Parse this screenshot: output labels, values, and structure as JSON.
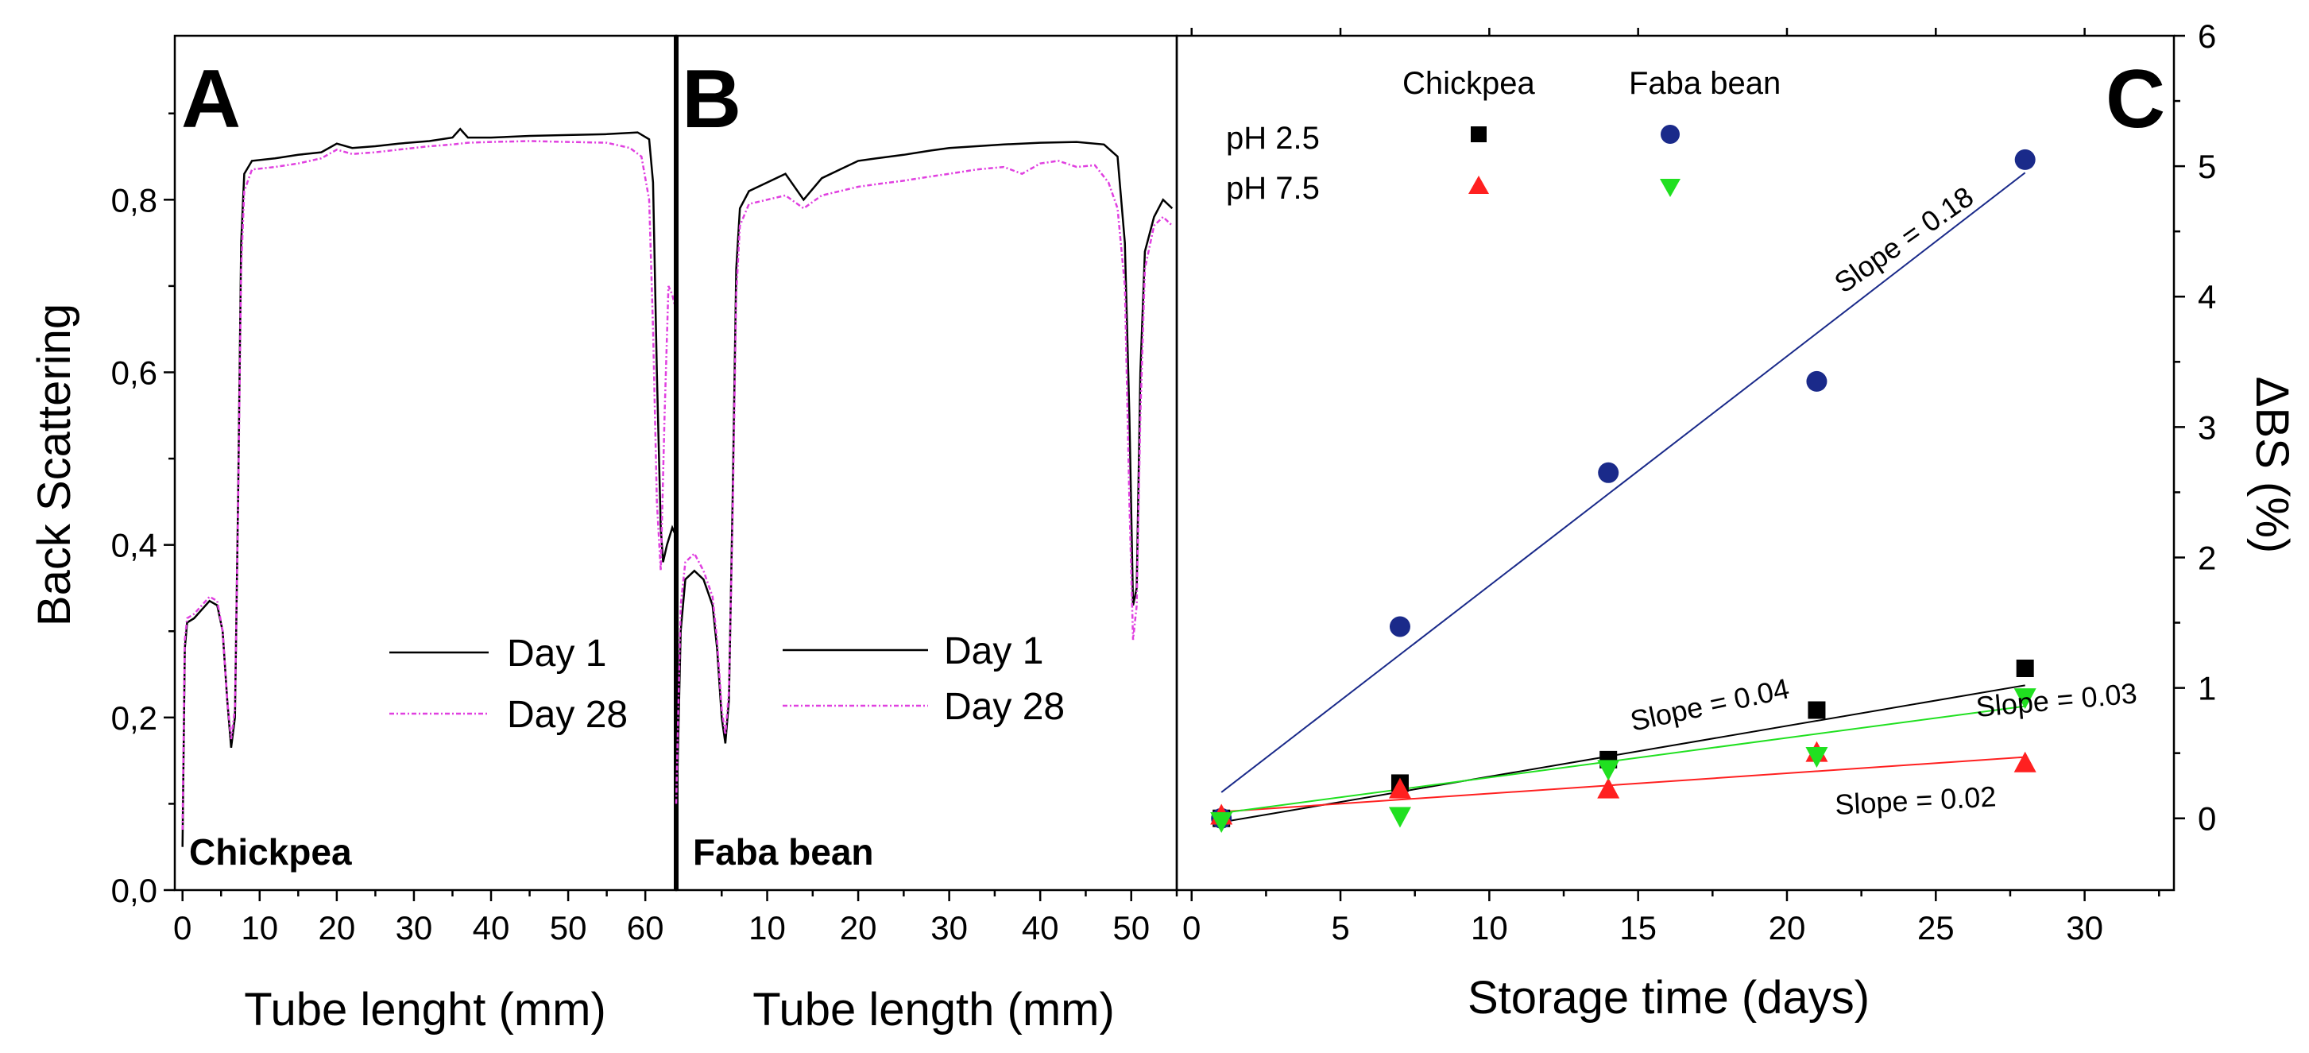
{
  "chart_data": [
    {
      "type": "line",
      "panel": "A",
      "label": "Chickpea",
      "xlabel": "Tube lenght (mm)",
      "ylabel": "Back Scattering",
      "xlim": [
        -1,
        64
      ],
      "ylim": [
        0,
        0.99
      ],
      "xticks": [
        0,
        10,
        20,
        30,
        40,
        50,
        60
      ],
      "xtick_labels": [
        "0",
        "10",
        "20",
        "30",
        "40",
        "50",
        "60"
      ],
      "yticks": [
        0,
        0.2,
        0.4,
        0.6,
        0.8
      ],
      "ytick_labels": [
        "0,0",
        "0,2",
        "0,4",
        "0,6",
        "0,8"
      ],
      "legend": [
        "Day 1",
        "Day 28"
      ],
      "series": [
        {
          "name": "Day 1",
          "color": "#000000",
          "points": [
            [
              0,
              0.05
            ],
            [
              0.3,
              0.28
            ],
            [
              0.6,
              0.31
            ],
            [
              1.5,
              0.315
            ],
            [
              2.5,
              0.325
            ],
            [
              3.5,
              0.335
            ],
            [
              4.5,
              0.33
            ],
            [
              5.2,
              0.3
            ],
            [
              5.8,
              0.22
            ],
            [
              6.3,
              0.165
            ],
            [
              6.8,
              0.2
            ],
            [
              7.2,
              0.45
            ],
            [
              7.6,
              0.75
            ],
            [
              8,
              0.83
            ],
            [
              9,
              0.845
            ],
            [
              12,
              0.848
            ],
            [
              15,
              0.852
            ],
            [
              18,
              0.855
            ],
            [
              20,
              0.865
            ],
            [
              22,
              0.86
            ],
            [
              25,
              0.862
            ],
            [
              28,
              0.865
            ],
            [
              32,
              0.868
            ],
            [
              35,
              0.872
            ],
            [
              36,
              0.882
            ],
            [
              37,
              0.872
            ],
            [
              40,
              0.872
            ],
            [
              45,
              0.874
            ],
            [
              50,
              0.875
            ],
            [
              55,
              0.876
            ],
            [
              59,
              0.878
            ],
            [
              60.5,
              0.87
            ],
            [
              61,
              0.82
            ],
            [
              61.5,
              0.6
            ],
            [
              62,
              0.42
            ],
            [
              62.3,
              0.38
            ],
            [
              62.8,
              0.4
            ],
            [
              63.5,
              0.42
            ],
            [
              64,
              0.41
            ]
          ]
        },
        {
          "name": "Day 28",
          "color": "#e040e0",
          "points": [
            [
              0,
              0.07
            ],
            [
              0.3,
              0.29
            ],
            [
              0.6,
              0.315
            ],
            [
              1.5,
              0.32
            ],
            [
              2.5,
              0.33
            ],
            [
              3.5,
              0.34
            ],
            [
              4.5,
              0.335
            ],
            [
              5.2,
              0.3
            ],
            [
              5.8,
              0.22
            ],
            [
              6.3,
              0.175
            ],
            [
              6.8,
              0.21
            ],
            [
              7.2,
              0.44
            ],
            [
              7.6,
              0.72
            ],
            [
              8,
              0.81
            ],
            [
              9,
              0.835
            ],
            [
              12,
              0.838
            ],
            [
              15,
              0.842
            ],
            [
              18,
              0.848
            ],
            [
              20,
              0.858
            ],
            [
              22,
              0.853
            ],
            [
              25,
              0.855
            ],
            [
              28,
              0.858
            ],
            [
              32,
              0.862
            ],
            [
              35,
              0.864
            ],
            [
              37,
              0.866
            ],
            [
              40,
              0.867
            ],
            [
              45,
              0.868
            ],
            [
              50,
              0.867
            ],
            [
              55,
              0.866
            ],
            [
              58,
              0.86
            ],
            [
              59.5,
              0.85
            ],
            [
              60.5,
              0.8
            ],
            [
              61,
              0.65
            ],
            [
              61.5,
              0.45
            ],
            [
              62,
              0.37
            ],
            [
              62.5,
              0.55
            ],
            [
              63,
              0.7
            ],
            [
              63.5,
              0.69
            ],
            [
              64,
              0.67
            ]
          ]
        }
      ]
    },
    {
      "type": "line",
      "panel": "B",
      "label": "Faba bean",
      "xlabel": "Tube length (mm)",
      "ylabel": "",
      "xlim": [
        0,
        55
      ],
      "ylim": [
        0,
        0.99
      ],
      "xticks": [
        10,
        20,
        30,
        40,
        50
      ],
      "xtick_labels": [
        "10",
        "20",
        "30",
        "40",
        "50"
      ],
      "legend": [
        "Day 1",
        "Day 28"
      ],
      "series": [
        {
          "name": "Day 1",
          "color": "#000000",
          "points": [
            [
              0,
              0.07
            ],
            [
              0.5,
              0.3
            ],
            [
              1,
              0.36
            ],
            [
              2,
              0.37
            ],
            [
              3,
              0.36
            ],
            [
              4,
              0.33
            ],
            [
              4.5,
              0.28
            ],
            [
              5,
              0.2
            ],
            [
              5.4,
              0.17
            ],
            [
              5.8,
              0.22
            ],
            [
              6.2,
              0.45
            ],
            [
              6.6,
              0.72
            ],
            [
              7,
              0.79
            ],
            [
              8,
              0.81
            ],
            [
              10,
              0.82
            ],
            [
              12,
              0.83
            ],
            [
              14,
              0.8
            ],
            [
              16,
              0.825
            ],
            [
              18,
              0.835
            ],
            [
              20,
              0.845
            ],
            [
              22,
              0.848
            ],
            [
              25,
              0.852
            ],
            [
              28,
              0.857
            ],
            [
              30,
              0.86
            ],
            [
              33,
              0.862
            ],
            [
              36,
              0.864
            ],
            [
              40,
              0.866
            ],
            [
              44,
              0.867
            ],
            [
              47,
              0.864
            ],
            [
              48.5,
              0.85
            ],
            [
              49.3,
              0.75
            ],
            [
              49.8,
              0.55
            ],
            [
              50.2,
              0.33
            ],
            [
              50.6,
              0.35
            ],
            [
              51,
              0.6
            ],
            [
              51.5,
              0.74
            ],
            [
              52.5,
              0.78
            ],
            [
              53.5,
              0.8
            ],
            [
              54.5,
              0.79
            ]
          ]
        },
        {
          "name": "Day 28",
          "color": "#e040e0",
          "points": [
            [
              0,
              0.1
            ],
            [
              0.5,
              0.33
            ],
            [
              1,
              0.38
            ],
            [
              2,
              0.39
            ],
            [
              3,
              0.37
            ],
            [
              4,
              0.34
            ],
            [
              4.5,
              0.29
            ],
            [
              5,
              0.21
            ],
            [
              5.4,
              0.18
            ],
            [
              5.8,
              0.23
            ],
            [
              6.2,
              0.43
            ],
            [
              6.6,
              0.69
            ],
            [
              7,
              0.77
            ],
            [
              8,
              0.795
            ],
            [
              10,
              0.8
            ],
            [
              12,
              0.805
            ],
            [
              14,
              0.79
            ],
            [
              16,
              0.805
            ],
            [
              18,
              0.81
            ],
            [
              20,
              0.815
            ],
            [
              22,
              0.818
            ],
            [
              25,
              0.822
            ],
            [
              28,
              0.827
            ],
            [
              30,
              0.83
            ],
            [
              33,
              0.835
            ],
            [
              36,
              0.838
            ],
            [
              38,
              0.83
            ],
            [
              40,
              0.842
            ],
            [
              42,
              0.845
            ],
            [
              44,
              0.838
            ],
            [
              46,
              0.84
            ],
            [
              47.5,
              0.82
            ],
            [
              48.5,
              0.79
            ],
            [
              49.3,
              0.7
            ],
            [
              49.8,
              0.45
            ],
            [
              50.2,
              0.29
            ],
            [
              50.6,
              0.33
            ],
            [
              51,
              0.55
            ],
            [
              51.5,
              0.72
            ],
            [
              52.5,
              0.77
            ],
            [
              53.5,
              0.78
            ],
            [
              54.5,
              0.77
            ]
          ]
        }
      ]
    },
    {
      "type": "scatter",
      "panel": "C",
      "xlabel": "Storage time (days)",
      "ylabel": "ΔBS (%)",
      "xlim": [
        -0.5,
        33
      ],
      "ylim": [
        -0.55,
        6
      ],
      "xticks": [
        0,
        5,
        10,
        15,
        20,
        25,
        30
      ],
      "xtick_labels": [
        "0",
        "5",
        "10",
        "15",
        "20",
        "25",
        "30"
      ],
      "yticks": [
        0,
        1,
        2,
        3,
        4,
        5,
        6
      ],
      "ytick_labels": [
        "0",
        "1",
        "2",
        "3",
        "4",
        "5",
        "6"
      ],
      "legend_columns": [
        "Chickpea",
        "Faba bean"
      ],
      "legend_rows": [
        "pH 2.5",
        "pH 7.5"
      ],
      "series": [
        {
          "name": "Chickpea pH 2.5",
          "marker": "square",
          "color": "#000000",
          "x": [
            1,
            7,
            14,
            21,
            28
          ],
          "y": [
            0.0,
            0.27,
            0.45,
            0.83,
            1.15
          ],
          "fit": {
            "x": [
              1,
              28
            ],
            "y": [
              -0.03,
              1.02
            ],
            "slope_label": "Slope = 0.04"
          }
        },
        {
          "name": "Faba bean pH 2.5",
          "marker": "circle",
          "color": "#1a2a8a",
          "x": [
            1,
            7,
            14,
            21,
            28
          ],
          "y": [
            0.0,
            1.47,
            2.65,
            3.35,
            5.05
          ],
          "fit": {
            "x": [
              1,
              28
            ],
            "y": [
              0.2,
              4.95
            ],
            "slope_label": "Slope = 0.18"
          }
        },
        {
          "name": "Chickpea pH 7.5",
          "marker": "triangle-up",
          "color": "#ff2020",
          "x": [
            1,
            7,
            14,
            21,
            28
          ],
          "y": [
            0.02,
            0.22,
            0.22,
            0.5,
            0.42
          ],
          "fit": {
            "x": [
              1,
              28
            ],
            "y": [
              0.05,
              0.47
            ],
            "slope_label": "Slope = 0.02"
          }
        },
        {
          "name": "Faba bean pH 7.5",
          "marker": "triangle-down",
          "color": "#20e020",
          "x": [
            1,
            7,
            14,
            21,
            28
          ],
          "y": [
            -0.02,
            0.02,
            0.38,
            0.48,
            0.93
          ],
          "fit": {
            "x": [
              1,
              28
            ],
            "y": [
              0.04,
              0.86
            ],
            "slope_label": "Slope = 0.03"
          }
        }
      ]
    }
  ]
}
